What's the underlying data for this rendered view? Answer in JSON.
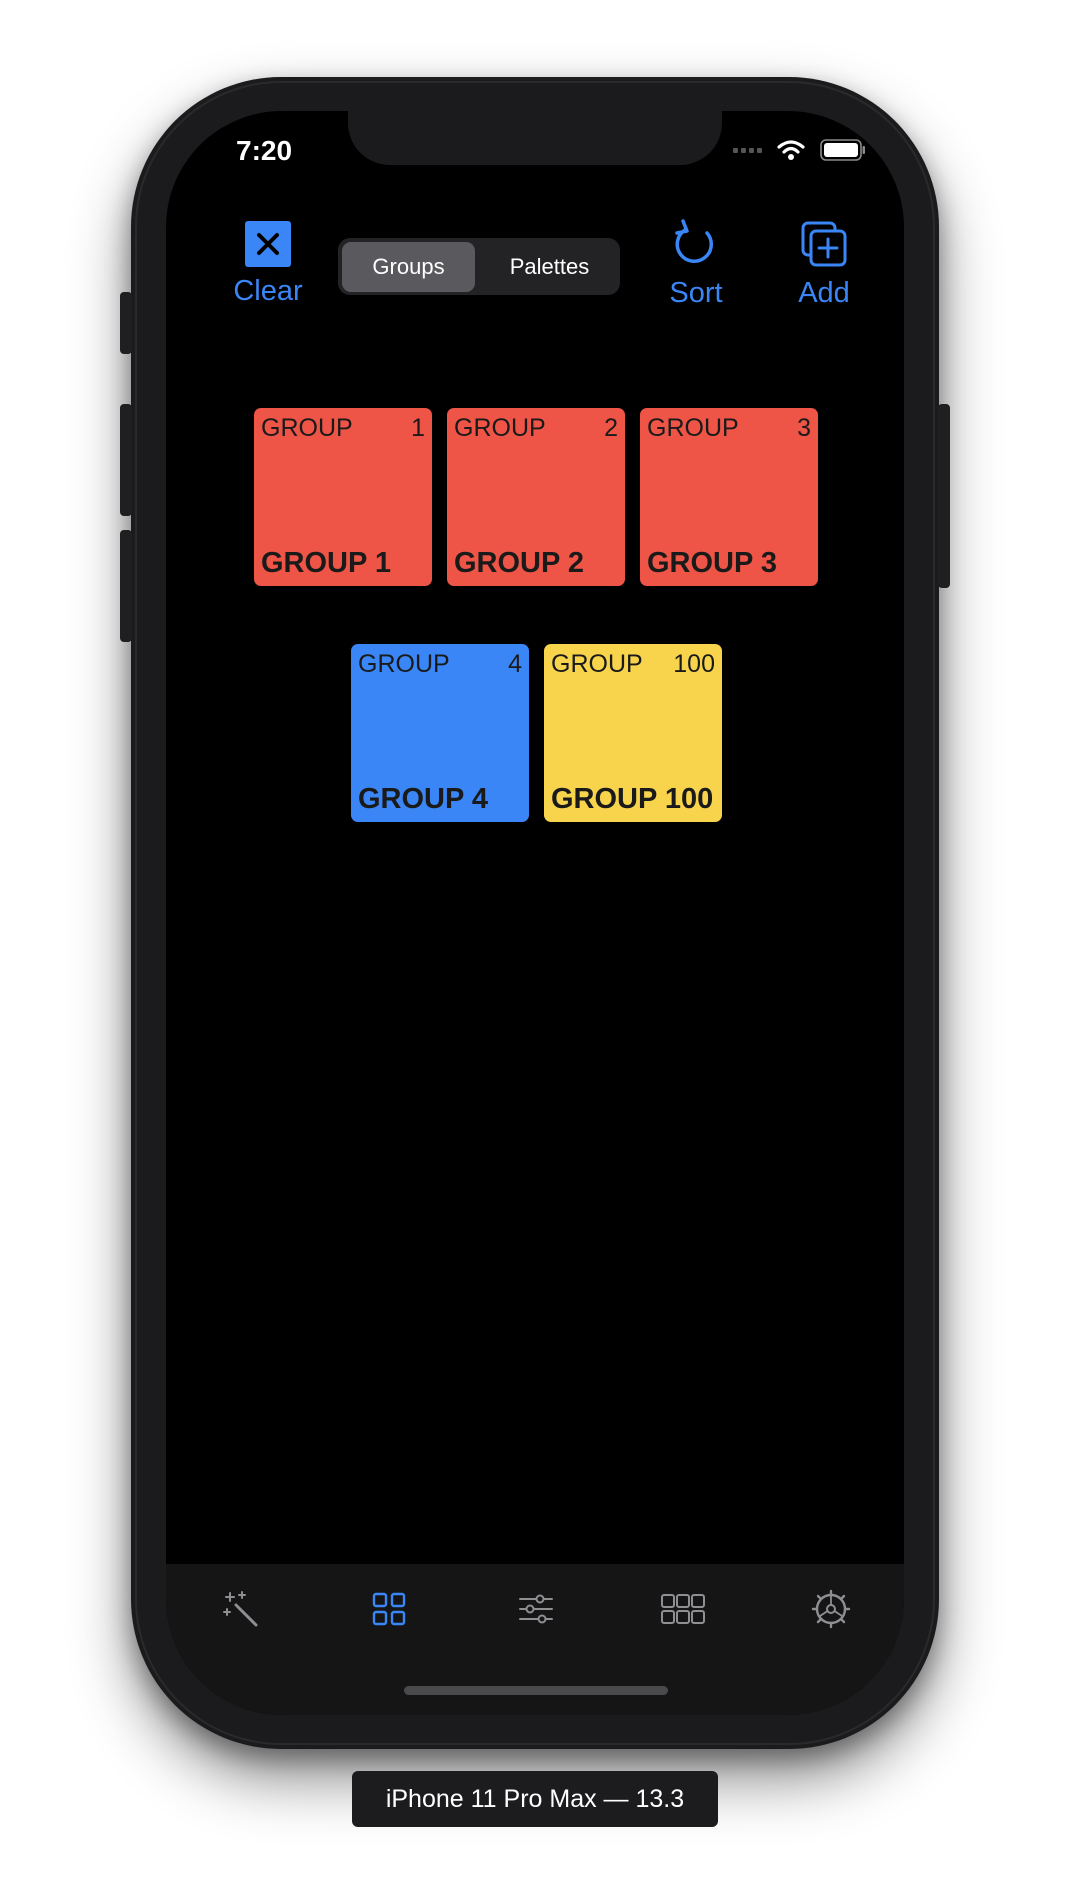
{
  "status_bar": {
    "time": "7:20"
  },
  "toolbar": {
    "clear_label": "Clear",
    "sort_label": "Sort",
    "add_label": "Add",
    "segments": [
      "Groups",
      "Palettes"
    ],
    "selected_segment": "Groups"
  },
  "groups": [
    {
      "prefix": "GROUP",
      "number": "1",
      "title": "GROUP 1",
      "color": "#ee5547"
    },
    {
      "prefix": "GROUP",
      "number": "2",
      "title": "GROUP 2",
      "color": "#ee5547"
    },
    {
      "prefix": "GROUP",
      "number": "3",
      "title": "GROUP 3",
      "color": "#ee5547"
    },
    {
      "prefix": "GROUP",
      "number": "4",
      "title": "GROUP 4",
      "color": "#3a86f7"
    },
    {
      "prefix": "GROUP",
      "number": "100",
      "title": "GROUP 100",
      "color": "#f8d44c"
    }
  ],
  "tabbar": {
    "tabs": [
      "magic-wand-icon",
      "grid-icon",
      "sliders-icon",
      "palette-grid-icon",
      "gear-icon"
    ],
    "active_index": 1
  },
  "simulator_label": "iPhone 11 Pro Max — 13.3",
  "colors": {
    "accent": "#3a86f6",
    "inactive_icon": "#8e8e93"
  }
}
